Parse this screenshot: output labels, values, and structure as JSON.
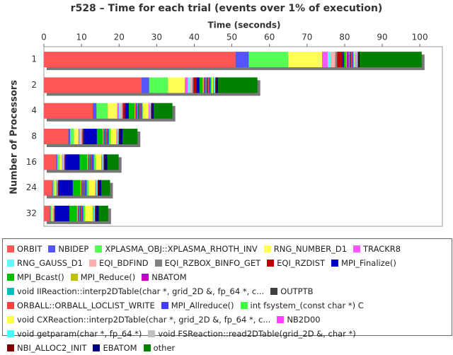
{
  "chart_data": {
    "type": "stacked-horizontal-bar",
    "title": "r528 – Time for each trial (events over 1% of execution)",
    "xlabel": "Time (seconds)",
    "ylabel": "Number of Processors",
    "categories": [
      "1",
      "2",
      "4",
      "8",
      "16",
      "24",
      "32"
    ],
    "xlim": [
      0,
      106
    ],
    "xticks": [
      0,
      10,
      20,
      30,
      40,
      50,
      60,
      70,
      80,
      90,
      100
    ],
    "grid": false,
    "series": [
      {
        "name": "ORBIT",
        "color": "#ff5555",
        "values": [
          51,
          26,
          13,
          6.5,
          3.3,
          2.2,
          1.6
        ]
      },
      {
        "name": "NBIDEP",
        "color": "#5555ff",
        "values": [
          3.5,
          2,
          1,
          0.5,
          0.3,
          0.2,
          0.2
        ]
      },
      {
        "name": "XPLASMA_OBJ::XPLASMA_RHOTH_INV",
        "color": "#55ff55",
        "values": [
          10.5,
          5,
          3,
          1,
          0.6,
          0.4,
          0.3
        ]
      },
      {
        "name": "RNG_NUMBER_D1",
        "color": "#ffff55",
        "values": [
          9,
          4.5,
          2.5,
          1.2,
          0.6,
          0.4,
          0.3
        ]
      },
      {
        "name": "TRACKR8",
        "color": "#ff55ff",
        "values": [
          1.5,
          0.8,
          0.5,
          0.3,
          0.2,
          0.2,
          0.1
        ]
      },
      {
        "name": "RNG_GAUSS_D1",
        "color": "#55ffff",
        "values": [
          0.8,
          0.6,
          0.4,
          0.3,
          0.2,
          0.1,
          0.1
        ]
      },
      {
        "name": "EQI_BDFIND",
        "color": "#ffafaf",
        "values": [
          1.2,
          0.6,
          0.4,
          0.3,
          0.2,
          0.1,
          0.1
        ]
      },
      {
        "name": "EQI_RZBOX_BINFO_GET",
        "color": "#808080",
        "values": [
          0.5,
          0.3,
          0.3,
          0.2,
          0.1,
          0.1,
          0.1
        ]
      },
      {
        "name": "EQI_RZDIST",
        "color": "#c00000",
        "values": [
          1.5,
          0.8,
          0.5,
          0.3,
          0.2,
          0.2,
          0.2
        ]
      },
      {
        "name": "MPI_Finalize()",
        "color": "#0000c0",
        "values": [
          0.3,
          0.8,
          1,
          3.5,
          3.8,
          3.8,
          3.8
        ]
      },
      {
        "name": "MPI_Bcast()",
        "color": "#00c000",
        "values": [
          0.5,
          0.8,
          1.5,
          1.5,
          2,
          2,
          2
        ]
      },
      {
        "name": "MPI_Reduce()",
        "color": "#c0c000",
        "values": [
          0.3,
          0.4,
          0.3,
          0.3,
          0.3,
          0.3,
          0.3
        ]
      },
      {
        "name": "NBATOM",
        "color": "#c000c0",
        "values": [
          0.5,
          0.4,
          0.4,
          0.3,
          0.3,
          0.3,
          0.3
        ]
      },
      {
        "name": "void IIReaction::interp2DTable(char *, grid_2D &, fp_64 *, c...",
        "color": "#00c0c0",
        "values": [
          0.3,
          0.3,
          0.3,
          0.2,
          0.2,
          0.2,
          0.2
        ]
      },
      {
        "name": "OUTPTB",
        "color": "#404040",
        "values": [
          0.3,
          0.3,
          0.3,
          0.2,
          0.2,
          0.2,
          0.2
        ]
      },
      {
        "name": "ORBALL::ORBALL_LOCLIST_WRITE",
        "color": "#ff4040",
        "values": [
          0.3,
          0.3,
          0.3,
          0.2,
          0.2,
          0.2,
          0.2
        ]
      },
      {
        "name": "MPI_Allreduce()",
        "color": "#4040ff",
        "values": [
          0.3,
          0.5,
          0.4,
          0.5,
          0.6,
          0.5,
          0.5
        ]
      },
      {
        "name": "int fsystem_(const char *) C",
        "color": "#40ff40",
        "values": [
          0.3,
          0.3,
          0.3,
          0.5,
          0.5,
          0.5,
          0.5
        ]
      },
      {
        "name": "void CXReaction::interp2DTable(char *, grid_2D &, fp_64 *, c...",
        "color": "#ffff40",
        "values": [
          0.3,
          0.3,
          1.5,
          1.5,
          1.5,
          1.8,
          2
        ]
      },
      {
        "name": "NB2D00",
        "color": "#ff40ff",
        "values": [
          0.2,
          0.2,
          0.2,
          0.2,
          0.2,
          0.2,
          0.2
        ]
      },
      {
        "name": "void getparam(char *, fp_64 *)",
        "color": "#40ffff",
        "values": [
          0.2,
          0.2,
          0.2,
          0.2,
          0.2,
          0.2,
          0.2
        ]
      },
      {
        "name": "void FSReaction::read2DTable(grid_2D &, char *)",
        "color": "#c0c0c0",
        "values": [
          0.2,
          0.2,
          0.2,
          0.2,
          0.2,
          0.2,
          0.2
        ]
      },
      {
        "name": "NBI_ALLOC2_INIT",
        "color": "#800000",
        "values": [
          0.2,
          0.2,
          0.2,
          0.2,
          0.2,
          0.2,
          0.2
        ]
      },
      {
        "name": "EBATOM",
        "color": "#000080",
        "values": [
          0.3,
          0.5,
          0.5,
          0.8,
          0.8,
          0.8,
          0.8
        ]
      },
      {
        "name": "other",
        "color": "#008000",
        "values": [
          16.5,
          10.5,
          5,
          4,
          3,
          2.3,
          2.5
        ]
      }
    ]
  }
}
